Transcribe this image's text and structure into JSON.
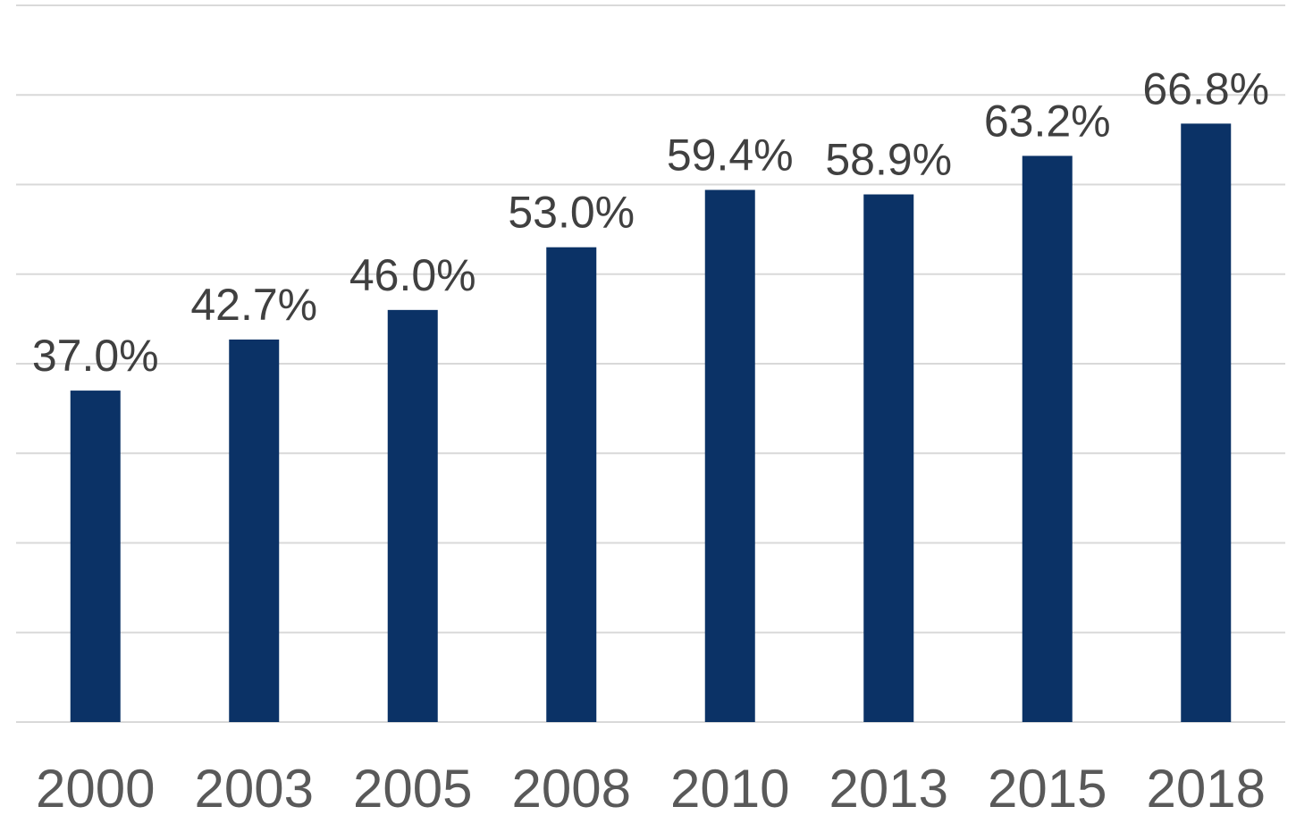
{
  "chart_data": {
    "type": "bar",
    "categories": [
      "2000",
      "2003",
      "2005",
      "2008",
      "2010",
      "2013",
      "2015",
      "2018"
    ],
    "values": [
      37.0,
      42.7,
      46.0,
      53.0,
      59.4,
      58.9,
      63.2,
      66.8
    ],
    "data_labels": [
      "37.0%",
      "42.7%",
      "46.0%",
      "53.0%",
      "59.4%",
      "58.9%",
      "63.2%",
      "66.8%"
    ],
    "title": "",
    "xlabel": "",
    "ylabel": "",
    "ylim": [
      0,
      80
    ],
    "gridline_step": 10,
    "grid": true,
    "legend": "none",
    "bar_color": "#0b3266",
    "label_color": "#404040",
    "tick_color": "#595959"
  }
}
